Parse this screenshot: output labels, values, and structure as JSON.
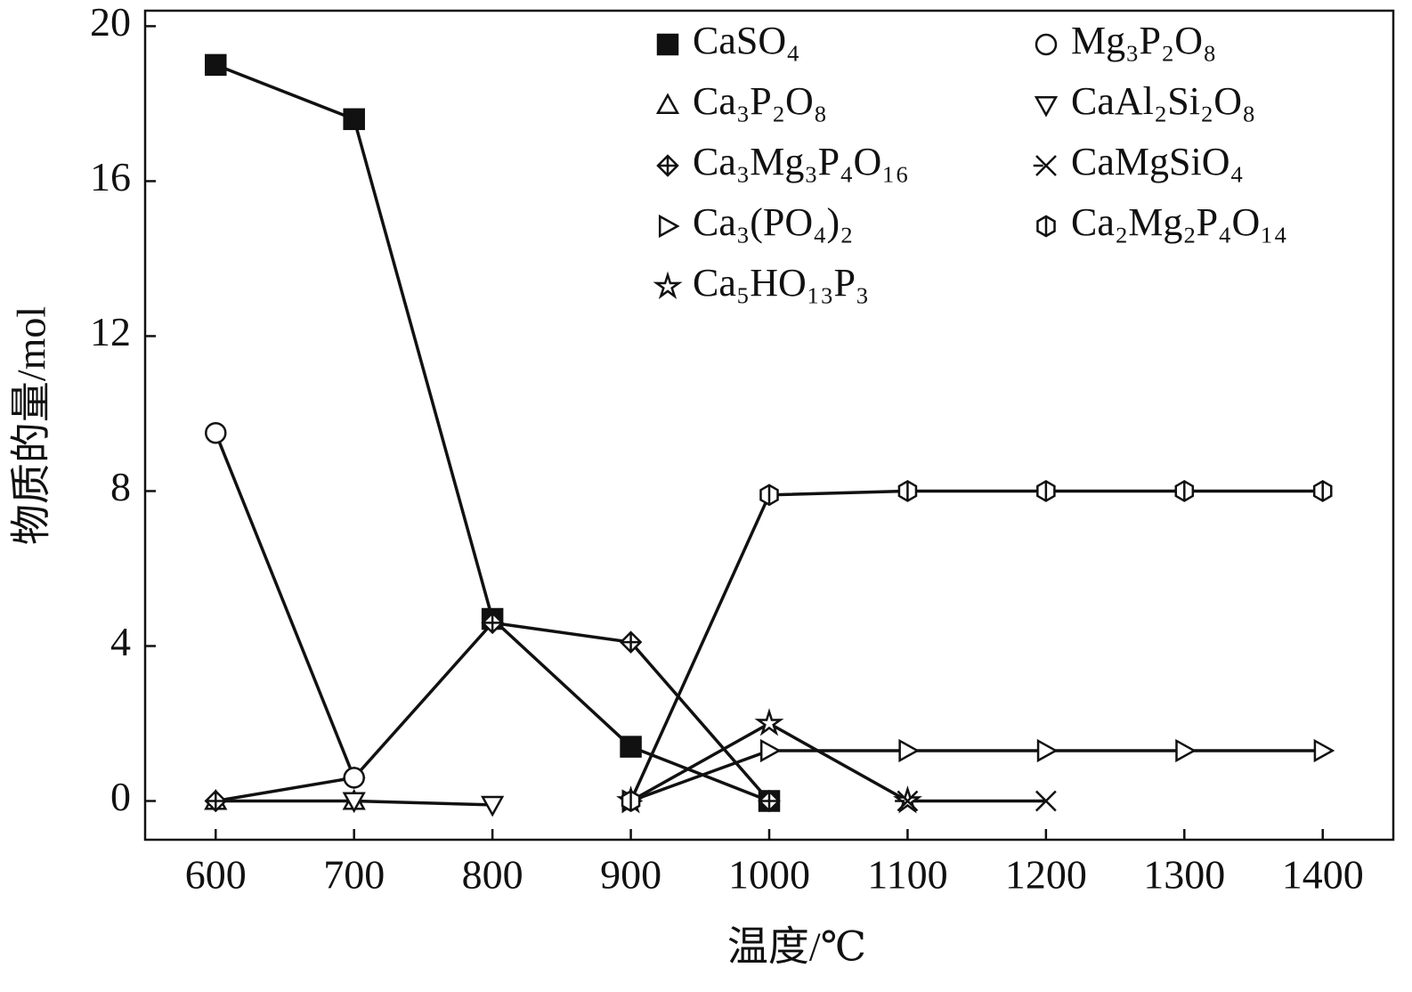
{
  "chart_data": {
    "type": "line",
    "x_label": "温度/℃",
    "y_label": "物质的量/mol",
    "xlim": [
      549,
      1451
    ],
    "ylim": [
      -1,
      20.4
    ],
    "xticks": [
      600,
      700,
      800,
      900,
      1000,
      1100,
      1200,
      1300,
      1400
    ],
    "yticks": [
      0,
      4,
      8,
      12,
      16,
      20
    ],
    "series": [
      {
        "name": "CaSO₄",
        "color": "#111111",
        "marker": "square",
        "x": [
          600,
          700,
          800,
          900,
          1000
        ],
        "values": [
          19,
          17.6,
          4.7,
          1.4,
          0
        ]
      },
      {
        "name": "Ca₃P₂O₈",
        "color": "#111111",
        "marker": "triangle-up",
        "x": [
          600,
          700
        ],
        "values": [
          0,
          0
        ]
      },
      {
        "name": "Ca₃Mg₃P₄O₁₆",
        "color": "#111111",
        "marker": "diamond-cross",
        "x": [
          600,
          700,
          800,
          900,
          1000
        ],
        "values": [
          0,
          0.6,
          4.6,
          4.1,
          0
        ]
      },
      {
        "name": "Ca₃(PO₄)₂",
        "color": "#111111",
        "marker": "triangle-right",
        "x": [
          900,
          1000,
          1100,
          1200,
          1300,
          1400
        ],
        "values": [
          0,
          1.3,
          1.3,
          1.3,
          1.3,
          1.3
        ]
      },
      {
        "name": "Ca₅HO₁₃P₃",
        "color": "#111111",
        "marker": "star",
        "x": [
          900,
          1000,
          1100
        ],
        "values": [
          0,
          2,
          0
        ]
      },
      {
        "name": "Mg₃P₂O₈",
        "color": "#111111",
        "marker": "circle",
        "x": [
          600,
          700
        ],
        "values": [
          9.5,
          0.6
        ]
      },
      {
        "name": "CaAl₂Si₂O₈",
        "color": "#111111",
        "marker": "triangle-down",
        "x": [
          700,
          800
        ],
        "values": [
          0,
          -0.1
        ]
      },
      {
        "name": "CaMgSiO₄",
        "color": "#111111",
        "marker": "x",
        "x": [
          1100,
          1200
        ],
        "values": [
          0,
          0
        ]
      },
      {
        "name": "Ca₂Mg₂P₄O₁₄",
        "color": "#111111",
        "marker": "hexagon",
        "x": [
          900,
          1000,
          1100,
          1200,
          1300,
          1400
        ],
        "values": [
          0,
          7.9,
          8,
          8,
          8,
          8
        ]
      }
    ]
  }
}
